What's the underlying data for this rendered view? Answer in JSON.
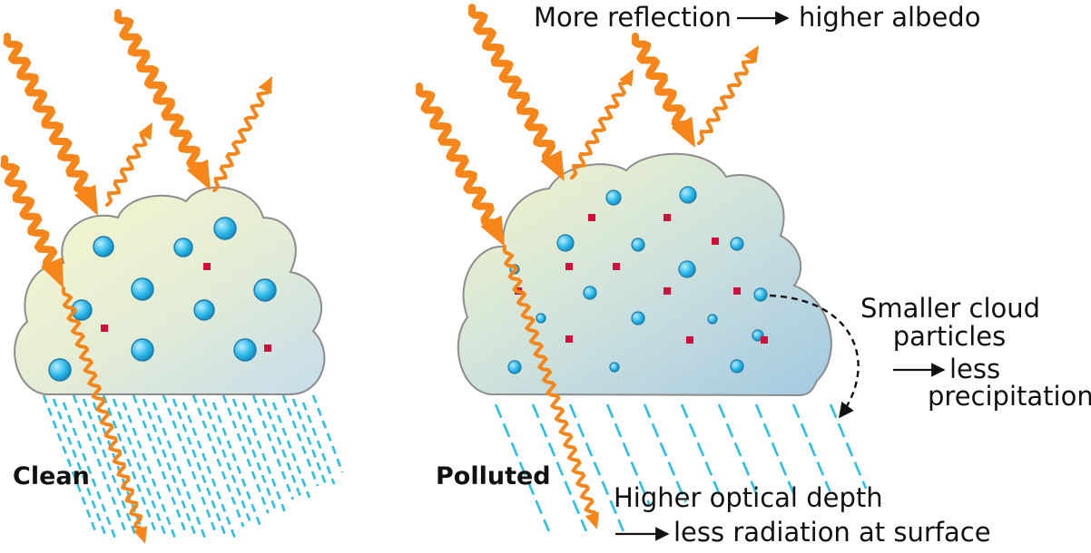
{
  "labels": {
    "clean": "Clean",
    "polluted": "Polluted",
    "reflection_left": "More reflection",
    "reflection_right": "higher albedo",
    "particles_line1": "Smaller cloud",
    "particles_line2": "particles",
    "precip_line1": "less",
    "precip_line2": "precipitation",
    "optical_line1": "Higher optical depth",
    "optical_line2": "less radiation at surface"
  },
  "colors": {
    "sunlight": "#f7861a",
    "droplet": "#29b6e6",
    "aerosol": "#d0103c",
    "rain": "#29c0e8",
    "cloud_outline": "#8c8c8c",
    "text": "#111111"
  },
  "icons": {
    "arrow": "right-arrow-icon",
    "curved_arrow": "dashed-curved-arrow-icon"
  }
}
